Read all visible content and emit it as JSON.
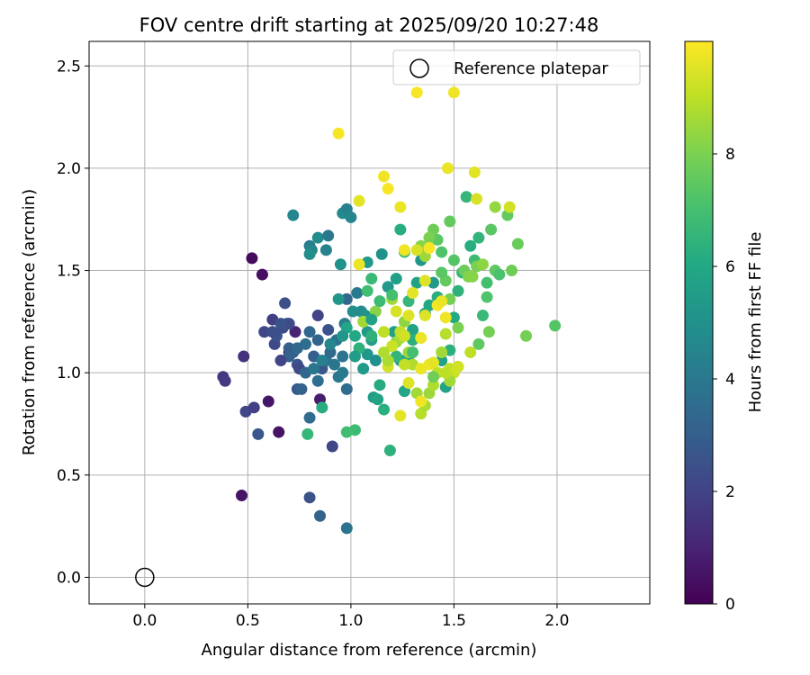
{
  "chart_data": {
    "type": "scatter",
    "title": "FOV centre drift starting at 2025/09/20 10:27:48",
    "xlabel": "Angular distance from reference (arcmin)",
    "ylabel": "Rotation from reference (arcmin)",
    "xlim": [
      -0.27,
      2.45
    ],
    "ylim": [
      -0.13,
      2.62
    ],
    "xticks": [
      0.0,
      0.5,
      1.0,
      1.5,
      2.0
    ],
    "xtick_labels": [
      "0.0",
      "0.5",
      "1.0",
      "1.5",
      "2.0"
    ],
    "yticks": [
      0.0,
      0.5,
      1.0,
      1.5,
      2.0,
      2.5
    ],
    "ytick_labels": [
      "0.0",
      "0.5",
      "1.0",
      "1.5",
      "2.0",
      "2.5"
    ],
    "grid": true,
    "legend": {
      "location": "top-right",
      "label": "Reference platepar"
    },
    "reference_point": {
      "x": 0.0,
      "y": 0.0
    },
    "colorbar": {
      "label": "Hours from first FF file",
      "range": [
        0,
        10
      ],
      "ticks": [
        0,
        2,
        4,
        6,
        8
      ],
      "tick_labels": [
        "0",
        "2",
        "4",
        "6",
        "8"
      ],
      "colormap": "viridis"
    },
    "points": [
      [
        0.52,
        1.56,
        0.3
      ],
      [
        0.57,
        1.48,
        0.4
      ],
      [
        0.47,
        0.4,
        0.5
      ],
      [
        0.6,
        0.86,
        0.6
      ],
      [
        0.65,
        0.71,
        0.5
      ],
      [
        0.85,
        0.87,
        0.8
      ],
      [
        0.7,
        1.1,
        0.9
      ],
      [
        0.73,
        1.2,
        1.0
      ],
      [
        0.48,
        1.08,
        1.4
      ],
      [
        0.38,
        0.98,
        1.6
      ],
      [
        0.39,
        0.96,
        1.7
      ],
      [
        0.49,
        0.81,
        2.1
      ],
      [
        0.53,
        0.83,
        1.9
      ],
      [
        0.55,
        0.7,
        2.7
      ],
      [
        0.62,
        1.26,
        1.8
      ],
      [
        0.63,
        1.14,
        2.2
      ],
      [
        0.64,
        1.18,
        2.5
      ],
      [
        0.67,
        1.22,
        2.3
      ],
      [
        0.68,
        1.34,
        2.4
      ],
      [
        0.69,
        1.24,
        2.8
      ],
      [
        0.7,
        1.12,
        3.0
      ],
      [
        0.72,
        1.1,
        2.9
      ],
      [
        0.74,
        1.04,
        2.6
      ],
      [
        0.75,
        1.02,
        2.2
      ],
      [
        0.74,
        0.92,
        2.8
      ],
      [
        0.76,
        0.92,
        3.1
      ],
      [
        0.78,
        1.0,
        3.3
      ],
      [
        0.8,
        0.78,
        3.5
      ],
      [
        0.8,
        0.39,
        2.5
      ],
      [
        0.84,
        1.28,
        2.0
      ],
      [
        0.85,
        0.3,
        3.2
      ],
      [
        0.91,
        0.64,
        2.1
      ],
      [
        0.82,
        1.08,
        3.0
      ],
      [
        0.86,
        1.02,
        2.7
      ],
      [
        0.84,
        0.96,
        3.6
      ],
      [
        0.88,
        1.06,
        3.8
      ],
      [
        0.9,
        1.1,
        3.4
      ],
      [
        0.92,
        1.04,
        3.9
      ],
      [
        0.94,
        0.98,
        4.0
      ],
      [
        0.96,
        1.0,
        4.1
      ],
      [
        0.98,
        0.92,
        3.5
      ],
      [
        0.8,
        1.2,
        3.3
      ],
      [
        0.84,
        1.16,
        3.2
      ],
      [
        0.89,
        1.21,
        2.6
      ],
      [
        0.93,
        1.16,
        3.7
      ],
      [
        0.96,
        1.08,
        3.9
      ],
      [
        0.97,
        1.24,
        4.2
      ],
      [
        0.98,
        1.36,
        3.3
      ],
      [
        0.98,
        0.24,
        3.8
      ],
      [
        0.72,
        1.77,
        4.6
      ],
      [
        0.8,
        1.62,
        4.2
      ],
      [
        0.81,
        1.6,
        4.5
      ],
      [
        0.84,
        1.66,
        4.8
      ],
      [
        0.88,
        1.6,
        4.4
      ],
      [
        0.89,
        1.67,
        4.0
      ],
      [
        0.95,
        1.53,
        5.0
      ],
      [
        0.96,
        1.78,
        4.7
      ],
      [
        0.98,
        1.8,
        4.3
      ],
      [
        1.0,
        1.76,
        4.5
      ],
      [
        1.01,
        1.3,
        4.9
      ],
      [
        1.03,
        1.39,
        4.1
      ],
      [
        1.05,
        1.3,
        4.8
      ],
      [
        1.07,
        1.28,
        5.1
      ],
      [
        1.08,
        1.2,
        5.3
      ],
      [
        1.06,
        1.02,
        5.4
      ],
      [
        1.08,
        1.09,
        5.2
      ],
      [
        1.1,
        1.16,
        5.6
      ],
      [
        1.12,
        1.06,
        5.0
      ],
      [
        1.11,
        0.88,
        5.5
      ],
      [
        1.13,
        0.87,
        5.8
      ],
      [
        1.08,
        1.54,
        5.4
      ],
      [
        1.15,
        1.58,
        5.0
      ],
      [
        1.18,
        1.42,
        5.3
      ],
      [
        1.21,
        1.2,
        5.6
      ],
      [
        1.24,
        1.06,
        5.5
      ],
      [
        1.26,
        0.91,
        5.9
      ],
      [
        1.28,
        1.08,
        6.1
      ],
      [
        1.3,
        1.21,
        5.8
      ],
      [
        1.32,
        1.44,
        5.7
      ],
      [
        1.34,
        1.55,
        5.2
      ],
      [
        1.36,
        1.29,
        5.6
      ],
      [
        1.38,
        1.33,
        6.0
      ],
      [
        1.4,
        1.44,
        5.4
      ],
      [
        1.42,
        1.37,
        6.2
      ],
      [
        1.44,
        1.06,
        5.7
      ],
      [
        1.46,
        0.93,
        5.8
      ],
      [
        1.48,
        1.11,
        6.3
      ],
      [
        1.5,
        1.27,
        6.1
      ],
      [
        1.52,
        1.4,
        6.4
      ],
      [
        1.54,
        1.49,
        6.5
      ],
      [
        1.56,
        1.86,
        6.6
      ],
      [
        1.58,
        1.62,
        6.2
      ],
      [
        1.6,
        1.55,
        6.8
      ],
      [
        1.62,
        1.66,
        6.5
      ],
      [
        1.64,
        1.28,
        6.7
      ],
      [
        1.66,
        1.44,
        7.0
      ],
      [
        1.19,
        0.62,
        6.4
      ],
      [
        1.22,
        1.08,
        6.5
      ],
      [
        1.24,
        1.7,
        6.2
      ],
      [
        1.26,
        1.59,
        6.9
      ],
      [
        1.28,
        1.35,
        6.6
      ],
      [
        1.3,
        1.16,
        6.3
      ],
      [
        1.14,
        0.94,
        6.1
      ],
      [
        1.16,
        0.82,
        6.3
      ],
      [
        1.02,
        0.72,
        6.8
      ],
      [
        0.98,
        0.71,
        6.9
      ],
      [
        0.86,
        0.83,
        6.2
      ],
      [
        0.79,
        0.7,
        6.6
      ],
      [
        1.66,
        1.37,
        7.2
      ],
      [
        1.68,
        1.7,
        7.4
      ],
      [
        1.7,
        1.5,
        7.5
      ],
      [
        1.72,
        1.48,
        7.1
      ],
      [
        1.76,
        1.77,
        7.6
      ],
      [
        1.78,
        1.5,
        7.8
      ],
      [
        1.81,
        1.63,
        7.7
      ],
      [
        1.85,
        1.18,
        7.9
      ],
      [
        1.99,
        1.23,
        7.3
      ],
      [
        1.62,
        1.14,
        7.5
      ],
      [
        1.48,
        1.74,
        7.6
      ],
      [
        1.4,
        1.7,
        7.8
      ],
      [
        1.42,
        1.65,
        7.4
      ],
      [
        1.44,
        1.59,
        7.2
      ],
      [
        1.46,
        1.45,
        7.6
      ],
      [
        1.48,
        1.36,
        7.9
      ],
      [
        1.5,
        1.55,
        7.3
      ],
      [
        1.52,
        1.22,
        8.0
      ],
      [
        1.55,
        1.5,
        7.7
      ],
      [
        1.57,
        1.47,
        8.1
      ],
      [
        1.59,
        1.47,
        8.2
      ],
      [
        1.61,
        1.52,
        8.0
      ],
      [
        1.64,
        1.53,
        8.3
      ],
      [
        1.67,
        1.2,
        7.9
      ],
      [
        1.7,
        1.81,
        8.4
      ],
      [
        1.34,
        1.62,
        8.2
      ],
      [
        1.36,
        1.57,
        8.5
      ],
      [
        1.38,
        1.66,
        8.0
      ],
      [
        1.2,
        1.36,
        8.6
      ],
      [
        1.22,
        1.15,
        8.4
      ],
      [
        1.24,
        1.17,
        8.7
      ],
      [
        1.26,
        1.25,
        8.3
      ],
      [
        1.28,
        1.1,
        8.5
      ],
      [
        1.3,
        1.04,
        8.8
      ],
      [
        1.32,
        0.9,
        8.6
      ],
      [
        1.34,
        0.8,
        8.9
      ],
      [
        1.36,
        0.84,
        8.7
      ],
      [
        1.38,
        0.9,
        8.5
      ],
      [
        1.4,
        0.94,
        8.8
      ],
      [
        1.42,
        1.0,
        9.0
      ],
      [
        1.44,
        1.1,
        8.6
      ],
      [
        1.46,
        1.19,
        8.9
      ],
      [
        1.48,
        1.02,
        9.1
      ],
      [
        1.5,
        1.0,
        9.2
      ],
      [
        1.16,
        1.2,
        9.0
      ],
      [
        1.18,
        1.03,
        9.3
      ],
      [
        1.2,
        1.13,
        9.2
      ],
      [
        1.22,
        1.3,
        9.4
      ],
      [
        1.24,
        1.2,
        9.1
      ],
      [
        1.26,
        1.18,
        9.3
      ],
      [
        1.28,
        1.28,
        9.5
      ],
      [
        1.3,
        1.39,
        9.6
      ],
      [
        1.32,
        1.6,
        9.4
      ],
      [
        1.34,
        1.17,
        9.7
      ],
      [
        1.36,
        1.28,
        9.5
      ],
      [
        1.38,
        1.04,
        9.8
      ],
      [
        1.4,
        1.05,
        9.6
      ],
      [
        1.42,
        1.33,
        9.9
      ],
      [
        1.44,
        1.35,
        9.7
      ],
      [
        1.46,
        1.27,
        9.8
      ],
      [
        1.04,
        1.84,
        9.6
      ],
      [
        1.04,
        1.53,
        9.7
      ],
      [
        1.16,
        1.96,
        9.8
      ],
      [
        1.18,
        1.9,
        9.9
      ],
      [
        1.24,
        1.81,
        9.7
      ],
      [
        1.26,
        1.6,
        9.8
      ],
      [
        1.32,
        2.37,
        9.9
      ],
      [
        1.5,
        2.37,
        9.8
      ],
      [
        0.94,
        2.17,
        9.9
      ],
      [
        1.47,
        2.0,
        9.7
      ],
      [
        1.6,
        1.98,
        9.6
      ],
      [
        1.61,
        1.85,
        9.4
      ],
      [
        1.77,
        1.81,
        9.3
      ],
      [
        1.36,
        1.45,
        9.5
      ],
      [
        1.38,
        1.61,
        9.9
      ],
      [
        1.34,
        0.86,
        9.8
      ],
      [
        1.24,
        0.79,
        9.6
      ],
      [
        1.06,
        1.25,
        8.6
      ],
      [
        1.12,
        1.3,
        8.2
      ],
      [
        1.18,
        1.06,
        8.7
      ],
      [
        1.28,
        0.95,
        9.5
      ],
      [
        1.2,
        1.38,
        7.0
      ],
      [
        1.44,
        1.49,
        7.4
      ],
      [
        1.14,
        1.35,
        6.8
      ],
      [
        1.1,
        1.46,
        6.7
      ],
      [
        1.08,
        1.4,
        6.9
      ],
      [
        1.02,
        1.18,
        6.0
      ],
      [
        1.04,
        1.12,
        6.4
      ],
      [
        0.98,
        1.22,
        5.9
      ],
      [
        1.1,
        1.26,
        5.7
      ],
      [
        1.22,
        1.46,
        5.6
      ],
      [
        0.8,
        1.58,
        4.9
      ],
      [
        0.7,
        1.24,
        2.3
      ],
      [
        0.66,
        1.24,
        2.6
      ],
      [
        0.58,
        1.2,
        2.1
      ],
      [
        0.62,
        1.2,
        2.4
      ],
      [
        0.94,
        1.36,
        5.2
      ],
      [
        1.3,
        1.1,
        7.0
      ],
      [
        1.4,
        0.98,
        7.8
      ],
      [
        1.48,
        0.96,
        8.6
      ],
      [
        1.58,
        1.1,
        9.0
      ],
      [
        1.52,
        1.03,
        9.3
      ],
      [
        1.46,
        1.0,
        9.0
      ],
      [
        1.34,
        1.02,
        9.7
      ],
      [
        1.26,
        1.04,
        9.1
      ],
      [
        1.16,
        1.1,
        8.8
      ],
      [
        1.1,
        1.18,
        6.4
      ],
      [
        1.02,
        1.08,
        5.5
      ],
      [
        0.96,
        1.18,
        5.2
      ],
      [
        0.9,
        1.14,
        4.6
      ],
      [
        0.86,
        1.06,
        4.3
      ],
      [
        0.82,
        1.02,
        3.9
      ],
      [
        0.78,
        1.14,
        3.6
      ],
      [
        0.74,
        1.12,
        3.4
      ],
      [
        0.7,
        1.08,
        3.1
      ],
      [
        0.66,
        1.06,
        2.0
      ]
    ]
  }
}
